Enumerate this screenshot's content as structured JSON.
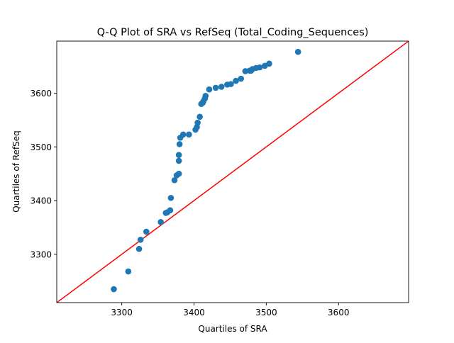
{
  "chart_data": {
    "type": "scatter",
    "title": "Q-Q Plot of SRA vs RefSeq (Total_Coding_Sequences)",
    "xlabel": "Quartiles of SRA",
    "ylabel": "Quartiles of RefSeq",
    "xlim": [
      3210,
      3697
    ],
    "ylim": [
      3210,
      3697
    ],
    "xticks": [
      3300,
      3400,
      3500,
      3600
    ],
    "yticks": [
      3300,
      3400,
      3500,
      3600
    ],
    "grid": false,
    "legend": "none",
    "colors": {
      "points": "#1f77b4",
      "reference_line": "#ff0000"
    },
    "reference_line": {
      "from": [
        3210,
        3210
      ],
      "to": [
        3697,
        3697
      ]
    },
    "points": [
      [
        3289,
        3235
      ],
      [
        3309,
        3268
      ],
      [
        3324,
        3310
      ],
      [
        3326,
        3327
      ],
      [
        3334,
        3342
      ],
      [
        3354,
        3360
      ],
      [
        3361,
        3377
      ],
      [
        3363,
        3378
      ],
      [
        3367,
        3382
      ],
      [
        3368,
        3405
      ],
      [
        3373,
        3438
      ],
      [
        3376,
        3447
      ],
      [
        3379,
        3450
      ],
      [
        3379,
        3474
      ],
      [
        3379,
        3485
      ],
      [
        3380,
        3505
      ],
      [
        3381,
        3517
      ],
      [
        3385,
        3523
      ],
      [
        3393,
        3523
      ],
      [
        3402,
        3532
      ],
      [
        3404,
        3537
      ],
      [
        3405,
        3545
      ],
      [
        3408,
        3556
      ],
      [
        3410,
        3580
      ],
      [
        3412,
        3582
      ],
      [
        3413,
        3585
      ],
      [
        3415,
        3590
      ],
      [
        3416,
        3595
      ],
      [
        3421,
        3607
      ],
      [
        3430,
        3610
      ],
      [
        3438,
        3612
      ],
      [
        3446,
        3616
      ],
      [
        3451,
        3617
      ],
      [
        3458,
        3623
      ],
      [
        3465,
        3627
      ],
      [
        3471,
        3641
      ],
      [
        3477,
        3642
      ],
      [
        3479,
        3642
      ],
      [
        3481,
        3645
      ],
      [
        3486,
        3647
      ],
      [
        3491,
        3648
      ],
      [
        3498,
        3651
      ],
      [
        3504,
        3655
      ],
      [
        3544,
        3677
      ]
    ]
  }
}
